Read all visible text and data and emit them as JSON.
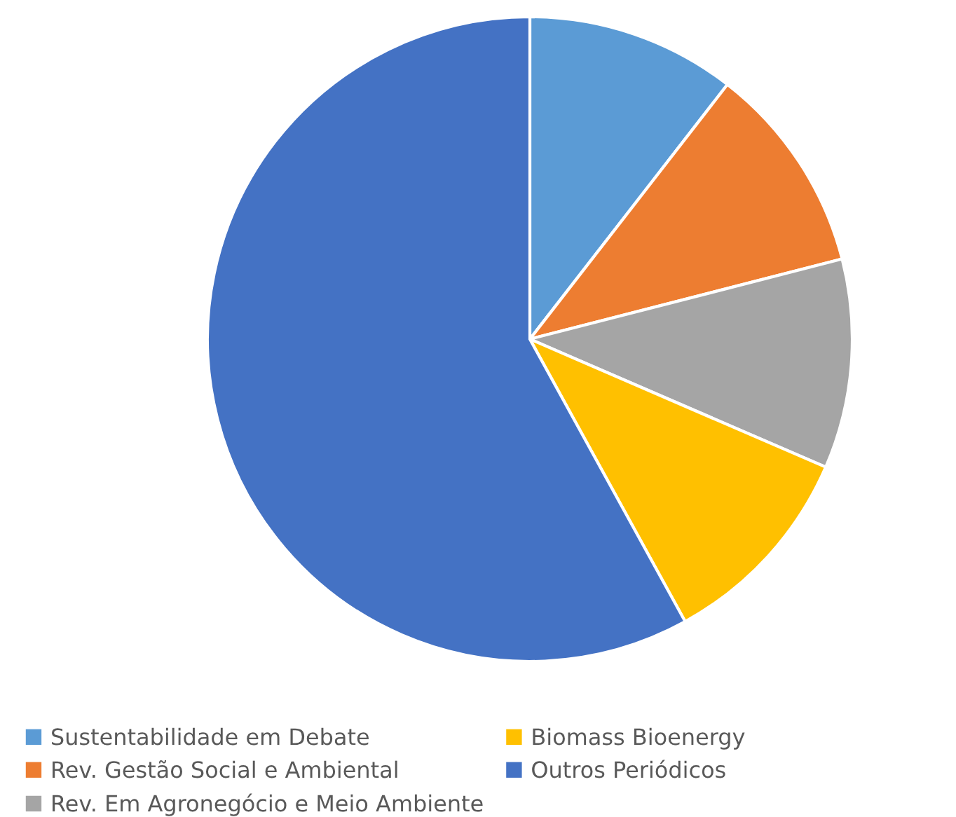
{
  "chart_data": {
    "type": "pie",
    "categories": [
      "Sustentabilidade em Debate",
      "Rev. Gestão Social e Ambiental",
      "Rev. Em Agronegócio e Meio Ambiente",
      "Biomass Bioenergy",
      "Outros Periódicos"
    ],
    "values": [
      10.5,
      10.5,
      10.5,
      10.5,
      58
    ],
    "colors": [
      "#5b9bd5",
      "#ed7d31",
      "#a5a5a5",
      "#ffc000",
      "#4472c4"
    ],
    "legend": "bottom"
  }
}
